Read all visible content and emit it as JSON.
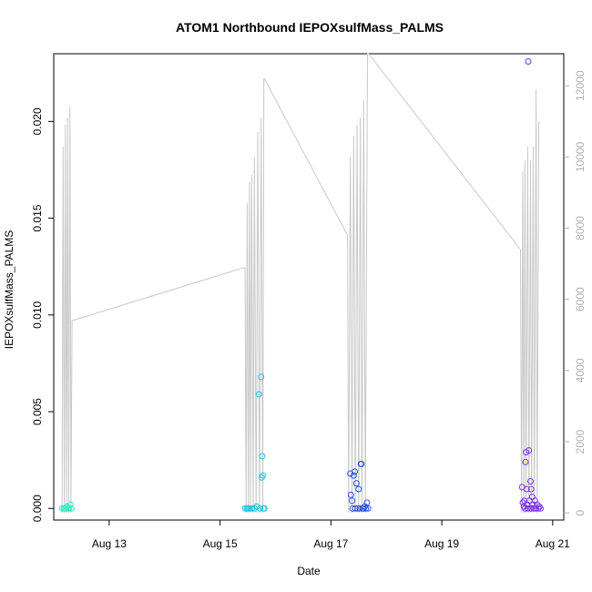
{
  "chart_data": {
    "type": "scatter",
    "title": "ATOM1 Northbound IEPOXsulfMass_PALMS",
    "xlabel": "Date",
    "ylabel": "IEPOXsulfMass_PALMS",
    "xlim": [
      12.0,
      21.2
    ],
    "ylim": [
      -0.0006,
      0.0235
    ],
    "y_ticks": [
      "0.000",
      "0.005",
      "0.010",
      "0.015",
      "0.020"
    ],
    "y_tick_values": [
      0.0,
      0.005,
      0.01,
      0.015,
      0.02
    ],
    "x_ticks": [
      "Aug 13",
      "Aug 15",
      "Aug 17",
      "Aug 19",
      "Aug 21"
    ],
    "x_tick_values": [
      13,
      15,
      17,
      19,
      21
    ],
    "y2lim": [
      -200,
      12900
    ],
    "y2_ticks": [
      "0",
      "2000",
      "4000",
      "6000",
      "8000",
      "10000",
      "12000"
    ],
    "y2_tick_values": [
      0,
      2000,
      4000,
      6000,
      8000,
      10000,
      12000
    ],
    "grid": false,
    "points": [
      {
        "x": 12.15,
        "y": 0.0,
        "c": "#2ef0c0"
      },
      {
        "x": 12.18,
        "y": 0.0,
        "c": "#2ef0c0"
      },
      {
        "x": 12.2,
        "y": 0.0,
        "c": "#2ef0c0"
      },
      {
        "x": 12.22,
        "y": 0.0,
        "c": "#2ef0c0"
      },
      {
        "x": 12.24,
        "y": 0.0001,
        "c": "#2ef0c0"
      },
      {
        "x": 12.26,
        "y": 0.0,
        "c": "#2ef0c0"
      },
      {
        "x": 12.28,
        "y": 0.0,
        "c": "#2ef0c0"
      },
      {
        "x": 12.3,
        "y": 0.0002,
        "c": "#2ef0c0"
      },
      {
        "x": 12.32,
        "y": 0.0,
        "c": "#2ef0c0"
      },
      {
        "x": 15.45,
        "y": 0.0,
        "c": "#27c2e8"
      },
      {
        "x": 15.48,
        "y": 0.0,
        "c": "#27c2e8"
      },
      {
        "x": 15.5,
        "y": 0.0,
        "c": "#27c2e8"
      },
      {
        "x": 15.52,
        "y": 0.0,
        "c": "#27c2e8"
      },
      {
        "x": 15.55,
        "y": 0.0,
        "c": "#27c2e8"
      },
      {
        "x": 15.58,
        "y": 0.0,
        "c": "#27c2e8"
      },
      {
        "x": 15.62,
        "y": 0.0,
        "c": "#27c2e8"
      },
      {
        "x": 15.66,
        "y": 0.0001,
        "c": "#27c2e8"
      },
      {
        "x": 15.7,
        "y": 0.0059,
        "c": "#27c2e8"
      },
      {
        "x": 15.72,
        "y": 0.0,
        "c": "#27c2e8"
      },
      {
        "x": 15.74,
        "y": 0.0068,
        "c": "#27c2e8"
      },
      {
        "x": 15.75,
        "y": 0.0016,
        "c": "#27c2e8"
      },
      {
        "x": 15.76,
        "y": 0.0027,
        "c": "#27c2e8"
      },
      {
        "x": 15.77,
        "y": 0.0017,
        "c": "#27c2e8"
      },
      {
        "x": 15.78,
        "y": 0.0,
        "c": "#27c2e8"
      },
      {
        "x": 15.8,
        "y": 0.0,
        "c": "#27c2e8"
      },
      {
        "x": 17.35,
        "y": 0.0018,
        "c": "#2a55e6"
      },
      {
        "x": 17.36,
        "y": 0.0007,
        "c": "#2a55e6"
      },
      {
        "x": 17.38,
        "y": 0.0004,
        "c": "#2a55e6"
      },
      {
        "x": 17.39,
        "y": 0.0,
        "c": "#2a55e6"
      },
      {
        "x": 17.41,
        "y": 0.0017,
        "c": "#2a55e6"
      },
      {
        "x": 17.43,
        "y": 0.0019,
        "c": "#2a55e6"
      },
      {
        "x": 17.44,
        "y": 0.0,
        "c": "#2a55e6"
      },
      {
        "x": 17.46,
        "y": 0.0013,
        "c": "#2a55e6"
      },
      {
        "x": 17.48,
        "y": 0.0,
        "c": "#2a55e6"
      },
      {
        "x": 17.5,
        "y": 0.001,
        "c": "#2a55e6"
      },
      {
        "x": 17.52,
        "y": 0.0,
        "c": "#2a55e6"
      },
      {
        "x": 17.54,
        "y": 0.0023,
        "c": "#2a55e6"
      },
      {
        "x": 17.55,
        "y": 0.0023,
        "c": "#2a55e6"
      },
      {
        "x": 17.57,
        "y": 0.0,
        "c": "#2a55e6"
      },
      {
        "x": 17.59,
        "y": 0.0,
        "c": "#2a55e6"
      },
      {
        "x": 17.61,
        "y": 0.0001,
        "c": "#2a55e6"
      },
      {
        "x": 17.63,
        "y": 0.0,
        "c": "#2a55e6"
      },
      {
        "x": 17.65,
        "y": 0.0003,
        "c": "#2a55e6"
      },
      {
        "x": 17.67,
        "y": 0.0,
        "c": "#2a55e6"
      },
      {
        "x": 20.45,
        "y": 0.0011,
        "c": "#7b35e4"
      },
      {
        "x": 20.46,
        "y": 0.0003,
        "c": "#7b35e4"
      },
      {
        "x": 20.48,
        "y": 0.0001,
        "c": "#7b35e4"
      },
      {
        "x": 20.49,
        "y": 0.0004,
        "c": "#7b35e4"
      },
      {
        "x": 20.5,
        "y": 0.0,
        "c": "#7b35e4"
      },
      {
        "x": 20.51,
        "y": 0.0024,
        "c": "#7b35e4"
      },
      {
        "x": 20.52,
        "y": 0.0029,
        "c": "#7b35e4"
      },
      {
        "x": 20.53,
        "y": 0.001,
        "c": "#7b35e4"
      },
      {
        "x": 20.54,
        "y": 0.0002,
        "c": "#7b35e4"
      },
      {
        "x": 20.55,
        "y": 0.0,
        "c": "#7b35e4"
      },
      {
        "x": 20.56,
        "y": 0.0231,
        "c": "#7b35e4"
      },
      {
        "x": 20.57,
        "y": 0.003,
        "c": "#7b35e4"
      },
      {
        "x": 20.58,
        "y": 0.0004,
        "c": "#7b35e4"
      },
      {
        "x": 20.59,
        "y": 0.0,
        "c": "#7b35e4"
      },
      {
        "x": 20.6,
        "y": 0.0014,
        "c": "#7b35e4"
      },
      {
        "x": 20.61,
        "y": 0.001,
        "c": "#7b35e4"
      },
      {
        "x": 20.62,
        "y": 0.0,
        "c": "#7b35e4"
      },
      {
        "x": 20.63,
        "y": 0.0006,
        "c": "#7b35e4"
      },
      {
        "x": 20.64,
        "y": 0.0002,
        "c": "#7b35e4"
      },
      {
        "x": 20.66,
        "y": 0.0,
        "c": "#7b35e4"
      },
      {
        "x": 20.68,
        "y": 0.0004,
        "c": "#7b35e4"
      },
      {
        "x": 20.7,
        "y": 0.0,
        "c": "#7b35e4"
      },
      {
        "x": 20.72,
        "y": 0.0002,
        "c": "#7b35e4"
      },
      {
        "x": 20.74,
        "y": 0.0,
        "c": "#7b35e4"
      },
      {
        "x": 20.76,
        "y": 0.0001,
        "c": "#7b35e4"
      },
      {
        "x": 20.78,
        "y": 0.0,
        "c": "#7b35e4"
      }
    ],
    "secondary_line": {
      "color": "#c8c8c8",
      "points": [
        [
          12.15,
          0
        ],
        [
          12.17,
          10300
        ],
        [
          12.19,
          0
        ],
        [
          12.21,
          10900
        ],
        [
          12.23,
          0
        ],
        [
          12.25,
          11100
        ],
        [
          12.27,
          0
        ],
        [
          12.29,
          11400
        ],
        [
          12.31,
          0
        ],
        [
          12.33,
          5400
        ],
        [
          15.45,
          6900
        ],
        [
          15.47,
          0
        ],
        [
          15.49,
          8700
        ],
        [
          15.51,
          0
        ],
        [
          15.53,
          9300
        ],
        [
          15.55,
          0
        ],
        [
          15.57,
          9500
        ],
        [
          15.6,
          0
        ],
        [
          15.62,
          10000
        ],
        [
          15.65,
          0
        ],
        [
          15.68,
          10700
        ],
        [
          15.71,
          0
        ],
        [
          15.74,
          11100
        ],
        [
          15.77,
          0
        ],
        [
          15.79,
          12200
        ],
        [
          15.8,
          12200
        ],
        [
          17.3,
          7800
        ],
        [
          17.32,
          0
        ],
        [
          17.35,
          10000
        ],
        [
          17.38,
          0
        ],
        [
          17.41,
          10600
        ],
        [
          17.44,
          0
        ],
        [
          17.47,
          10900
        ],
        [
          17.5,
          0
        ],
        [
          17.53,
          11100
        ],
        [
          17.56,
          0
        ],
        [
          17.59,
          11600
        ],
        [
          17.62,
          0
        ],
        [
          17.66,
          12900
        ],
        [
          17.68,
          12900
        ],
        [
          20.42,
          7400
        ],
        [
          20.44,
          0
        ],
        [
          20.46,
          9600
        ],
        [
          20.48,
          0
        ],
        [
          20.5,
          9900
        ],
        [
          20.52,
          0
        ],
        [
          20.55,
          10300
        ],
        [
          20.57,
          0
        ],
        [
          20.6,
          9900
        ],
        [
          20.62,
          0
        ],
        [
          20.65,
          10300
        ],
        [
          20.67,
          0
        ],
        [
          20.7,
          11900
        ],
        [
          20.72,
          0
        ],
        [
          20.75,
          11000
        ]
      ]
    }
  }
}
